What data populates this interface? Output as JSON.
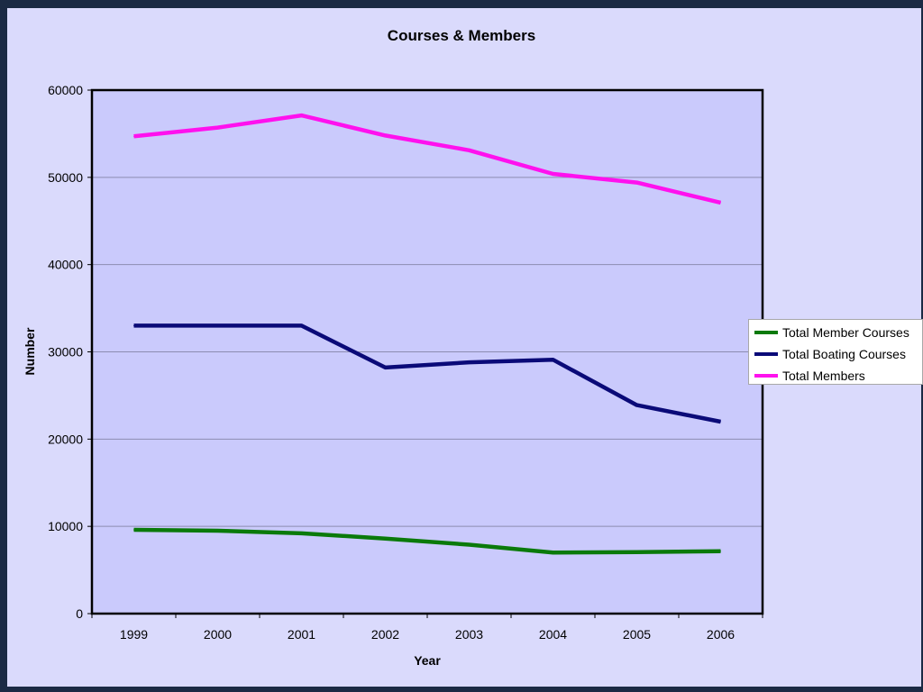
{
  "chart_data": {
    "type": "line",
    "title": "Courses & Members",
    "xlabel": "Year",
    "ylabel": "Number",
    "categories": [
      "1999",
      "2000",
      "2001",
      "2002",
      "2003",
      "2004",
      "2005",
      "2006"
    ],
    "ylim": [
      0,
      60000
    ],
    "yticks": [
      0,
      10000,
      20000,
      30000,
      40000,
      50000,
      60000
    ],
    "grid": true,
    "legend_position": "right",
    "series": [
      {
        "name": "Total Member Courses",
        "color": "#0a7a0a",
        "values": [
          9600,
          9500,
          9200,
          8600,
          7900,
          7000,
          7050,
          7150
        ]
      },
      {
        "name": "Total Boating Courses",
        "color": "#0a0a78",
        "values": [
          33000,
          33000,
          33000,
          28200,
          28800,
          29100,
          23900,
          22000
        ]
      },
      {
        "name": "Total Members",
        "color": "#ff11ee",
        "values": [
          54700,
          55700,
          57100,
          54800,
          53100,
          50400,
          49400,
          47100
        ]
      }
    ]
  }
}
